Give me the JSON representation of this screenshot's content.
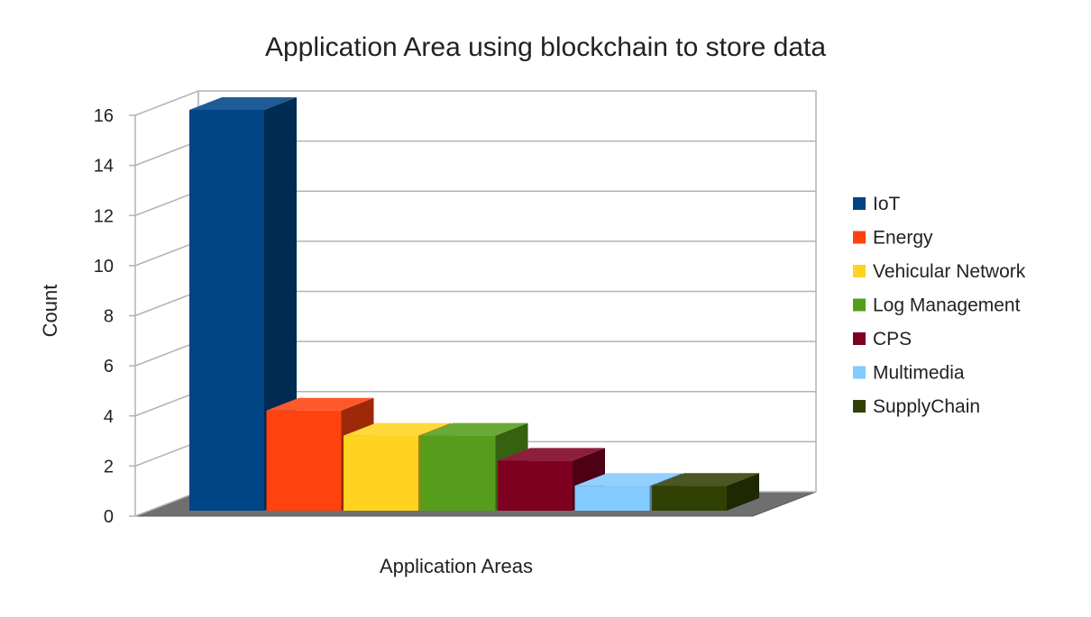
{
  "chart_data": {
    "type": "bar",
    "title": "Application Area using blockchain to store data",
    "xlabel": "Application Areas",
    "ylabel": "Count",
    "ylim": [
      0,
      16
    ],
    "yticks": [
      0,
      2,
      4,
      6,
      8,
      10,
      12,
      14,
      16
    ],
    "grid": true,
    "legend_position": "right",
    "series": [
      {
        "name": "IoT",
        "value": 16,
        "color": "#004586"
      },
      {
        "name": "Energy",
        "value": 4,
        "color": "#ff420e"
      },
      {
        "name": "Vehicular Network",
        "value": 3,
        "color": "#ffd320"
      },
      {
        "name": "Log Management",
        "value": 3,
        "color": "#579d1c"
      },
      {
        "name": "CPS",
        "value": 2,
        "color": "#7e0021"
      },
      {
        "name": "Multimedia",
        "value": 1,
        "color": "#83caff"
      },
      {
        "name": "SupplyChain",
        "value": 1,
        "color": "#314004"
      }
    ]
  }
}
